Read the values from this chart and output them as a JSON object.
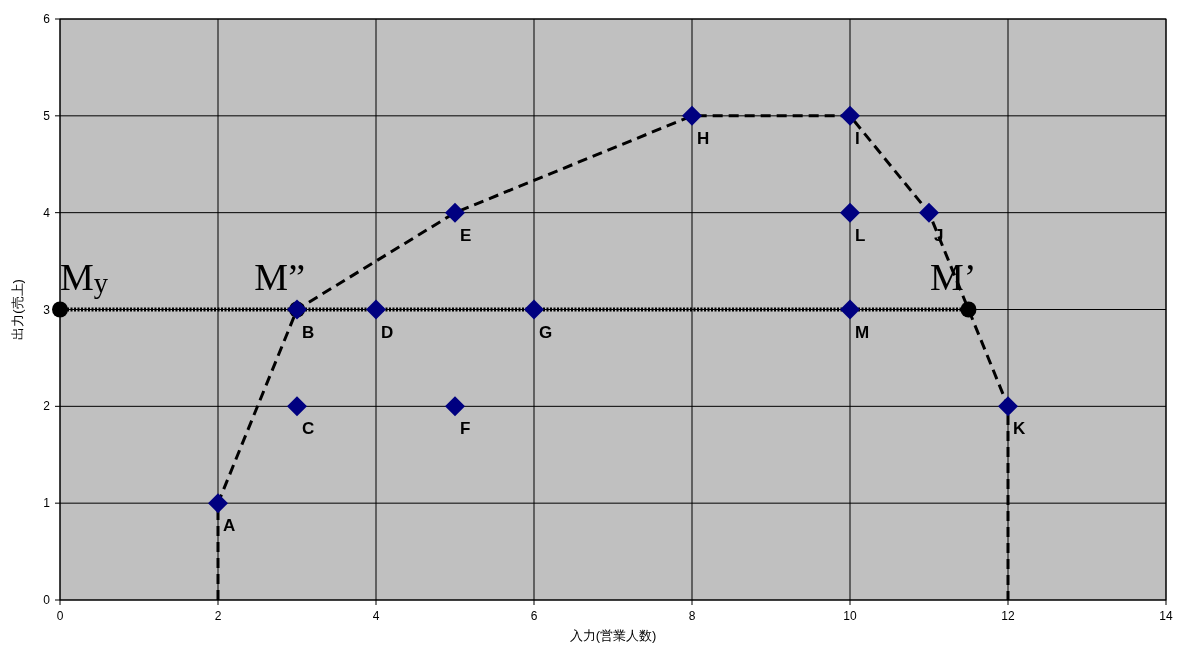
{
  "chart_data": {
    "type": "scatter",
    "xlabel": "入力(営業人数)",
    "ylabel": "出力(売上)",
    "xlim": [
      0,
      14
    ],
    "xticks": [
      0,
      2,
      4,
      6,
      8,
      10,
      12,
      14
    ],
    "ylim": [
      0,
      6
    ],
    "yticks": [
      0,
      1,
      2,
      3,
      4,
      5,
      6
    ],
    "grid": true,
    "series": [
      {
        "type": "line",
        "color": "#000000",
        "line_style": "dashed",
        "marker": "none",
        "x": [
          2,
          2,
          3,
          5,
          8,
          10,
          11,
          12,
          12
        ],
        "values": [
          0,
          1,
          3,
          4,
          5,
          5,
          4,
          2,
          0
        ]
      },
      {
        "color": "#000080",
        "marker": "diamond",
        "x": [
          2,
          3,
          3,
          4,
          5,
          5,
          6,
          8,
          10,
          11,
          12,
          10,
          10
        ],
        "values": [
          1,
          3,
          2,
          3,
          4,
          2,
          3,
          5,
          5,
          4,
          2,
          4,
          3
        ]
      },
      {
        "type": "line",
        "color": "#000000",
        "line_style": "dotted",
        "marker": "circle",
        "x": [
          0,
          3,
          11.5
        ],
        "values": [
          3,
          3,
          3
        ]
      }
    ],
    "annotations": [
      {
        "text": "A",
        "x": 2,
        "y": 1
      },
      {
        "text": "B",
        "x": 3,
        "y": 3
      },
      {
        "text": "C",
        "x": 3,
        "y": 2
      },
      {
        "text": "D",
        "x": 4,
        "y": 3
      },
      {
        "text": "E",
        "x": 5,
        "y": 4
      },
      {
        "text": "F",
        "x": 5,
        "y": 2
      },
      {
        "text": "G",
        "x": 6,
        "y": 3
      },
      {
        "text": "H",
        "x": 8,
        "y": 5
      },
      {
        "text": "I",
        "x": 10,
        "y": 5
      },
      {
        "text": "J",
        "x": 11,
        "y": 4
      },
      {
        "text": "K",
        "x": 12,
        "y": 2
      },
      {
        "text": "L",
        "x": 10,
        "y": 4
      },
      {
        "text": "M",
        "x": 10,
        "y": 3
      },
      {
        "text": "M$_{y}$",
        "x": 0,
        "y": 3
      },
      {
        "text": "M”",
        "x": 3,
        "y": 3
      },
      {
        "text": "M’",
        "x": 11.5,
        "y": 3
      }
    ]
  }
}
